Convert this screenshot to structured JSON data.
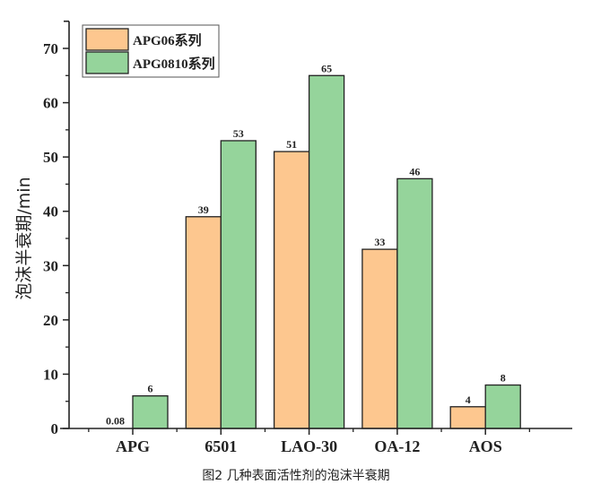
{
  "chart_data": {
    "type": "bar",
    "title": "",
    "caption": "图2 几种表面活性剂的泡沫半衰期",
    "xlabel": "",
    "ylabel": "泡沫半衰期/min",
    "ylim": [
      0,
      75
    ],
    "yticks": [
      0,
      10,
      20,
      30,
      40,
      50,
      60,
      70
    ],
    "grid": false,
    "legend_position": "upper-left",
    "categories": [
      "APG",
      "6501",
      "LAO-30",
      "OA-12",
      "AOS"
    ],
    "series": [
      {
        "name": "APG06系列",
        "color": "#fdc78f",
        "values": [
          0.08,
          39,
          51,
          33,
          4
        ],
        "labels": [
          "0.08",
          "39",
          "51",
          "33",
          "4"
        ]
      },
      {
        "name": "APG0810系列",
        "color": "#95d49b",
        "values": [
          6,
          53,
          65,
          46,
          8
        ],
        "labels": [
          "6",
          "53",
          "65",
          "46",
          "8"
        ]
      }
    ]
  }
}
